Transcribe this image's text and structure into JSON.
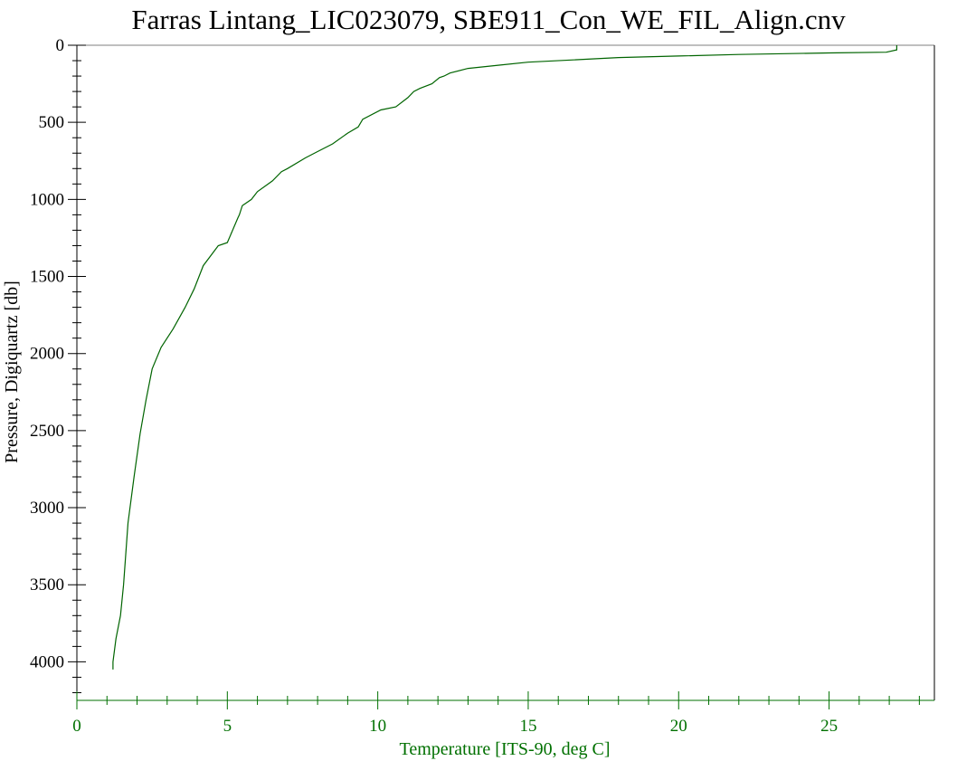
{
  "colors": {
    "background": "#ffffff",
    "axis_x": "#007000",
    "axis_y": "#000000",
    "series": "#006400"
  },
  "chart_data": {
    "type": "line",
    "title": "Farras Lintang_LIC023079, SBE911_Con_WE_FIL_Align.cnv",
    "xlabel": "Temperature [ITS-90, deg C]",
    "ylabel": "Pressure, Digiquartz [db]",
    "xlim": [
      0,
      28.5
    ],
    "ylim": [
      4250,
      0
    ],
    "y_inverted": true,
    "grid": false,
    "x_ticks": [
      "0",
      "5",
      "10",
      "15",
      "20",
      "25"
    ],
    "y_ticks": [
      "0",
      "500",
      "1000",
      "1500",
      "2000",
      "2500",
      "3000",
      "3500",
      "4000"
    ],
    "series": [
      {
        "x": [
          27.25,
          27.25,
          26.9,
          25.0,
          22.0,
          20.0,
          18.0,
          16.5,
          15.0,
          14.0,
          13.0,
          12.4,
          12.2,
          12.05,
          11.8,
          11.4,
          11.2,
          11.0,
          10.6,
          10.1,
          9.5,
          9.35,
          9.0,
          8.5,
          8.0,
          7.6,
          7.0,
          6.8,
          6.5,
          6.0,
          5.8,
          5.5,
          5.4,
          5.35,
          5.0,
          4.7,
          4.2,
          3.9,
          3.6,
          3.2,
          2.8,
          2.5,
          2.3,
          2.1,
          1.9,
          1.7,
          1.55,
          1.45,
          1.3,
          1.2,
          1.2
        ],
        "y": [
          0,
          30,
          45,
          50,
          60,
          70,
          80,
          95,
          110,
          130,
          150,
          180,
          200,
          210,
          250,
          280,
          300,
          340,
          400,
          420,
          480,
          530,
          570,
          640,
          690,
          730,
          800,
          820,
          880,
          950,
          1000,
          1040,
          1100,
          1120,
          1280,
          1300,
          1430,
          1580,
          1700,
          1840,
          1960,
          2100,
          2300,
          2520,
          2800,
          3100,
          3500,
          3700,
          3850,
          4000,
          4050
        ]
      }
    ]
  }
}
